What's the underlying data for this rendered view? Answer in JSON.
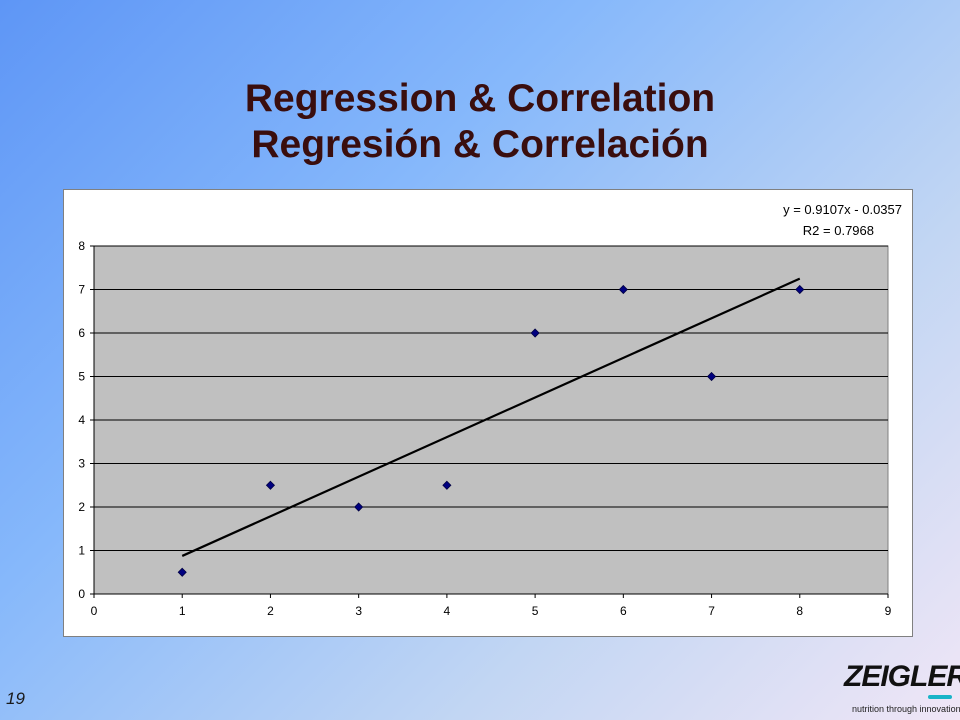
{
  "slide": {
    "title_line1": "Regression & Correlation",
    "title_line2": "Regresión & Correlación",
    "number": "19"
  },
  "logo": {
    "name": "ZEIGLER",
    "tagline": "nutrition through innovation",
    "accent_color": "#19b4c8"
  },
  "chart_data": {
    "type": "scatter",
    "x": [
      1,
      2,
      3,
      4,
      5,
      6,
      7,
      8
    ],
    "y": [
      0.5,
      2.5,
      2,
      2.5,
      6,
      7,
      5,
      7
    ],
    "xlim": [
      0,
      9
    ],
    "ylim": [
      0,
      8
    ],
    "x_ticks": [
      "0",
      "1",
      "2",
      "3",
      "4",
      "5",
      "6",
      "7",
      "8",
      "9"
    ],
    "y_ticks": [
      "0",
      "1",
      "2",
      "3",
      "4",
      "5",
      "6",
      "7",
      "8"
    ],
    "trendline": {
      "type": "linear",
      "slope": 0.9107,
      "intercept": -0.0357,
      "x_range": [
        1,
        8
      ],
      "equation_label": "y = 0.9107x  - 0.0357",
      "r2_label": "R2 = 0.7968"
    },
    "grid": "horizontal",
    "plot_background": "#c0c0c0",
    "marker_color": "#000080",
    "line_color": "#000000"
  }
}
